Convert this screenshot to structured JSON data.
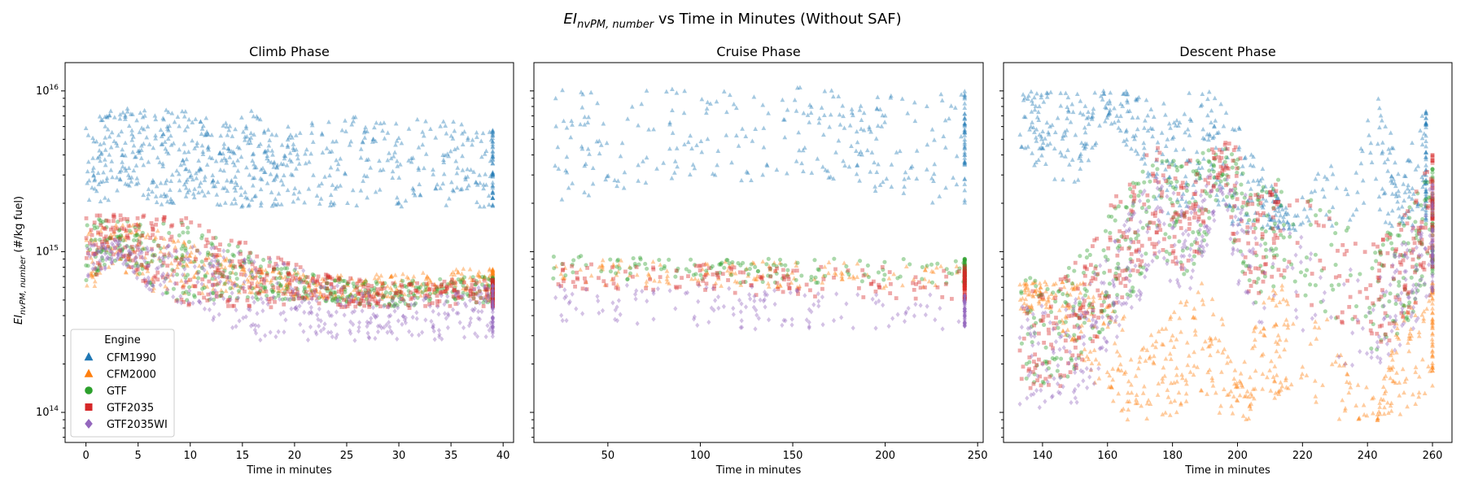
{
  "figure": {
    "title_main": "EI",
    "title_sub": "nvPM, number",
    "title_rest": " vs Time in Minutes (Without SAF)"
  },
  "ylabel": {
    "main": "EI",
    "sub": "nvPM, number",
    "rest": " (#/kg fuel)"
  },
  "legend": {
    "title": "Engine",
    "entries": [
      {
        "name": "CFM1990",
        "color": "#1f77b4",
        "marker": "triangle"
      },
      {
        "name": "CFM2000",
        "color": "#ff7f0e",
        "marker": "triangle"
      },
      {
        "name": "GTF",
        "color": "#2ca02c",
        "marker": "circle"
      },
      {
        "name": "GTF2035",
        "color": "#d62728",
        "marker": "square"
      },
      {
        "name": "GTF2035WI",
        "color": "#9467bd",
        "marker": "diamond"
      }
    ]
  },
  "chart_data": [
    {
      "type": "scatter",
      "title": "Climb Phase",
      "xlabel": "Time in minutes",
      "yscale": "log",
      "xlim": [
        -2,
        41
      ],
      "ylim": [
        65000000000000.0,
        1.5e+16
      ],
      "xticks": [
        0,
        5,
        10,
        15,
        20,
        25,
        30,
        35,
        40
      ],
      "yticks": [
        {
          "value": 100000000000000.0,
          "base": "10",
          "exp": "14"
        },
        {
          "value": 1000000000000000.0,
          "base": "10",
          "exp": "15"
        },
        {
          "value": 1e+16,
          "base": "10",
          "exp": "16"
        }
      ],
      "legend_position": "lower-left",
      "series": [
        {
          "name": "CFM1990",
          "points": [
            [
              0,
              3500000000000000.0
            ],
            [
              2,
              4000000000000000.0
            ],
            [
              4,
              4500000000000000.0
            ],
            [
              6,
              4000000000000000.0
            ],
            [
              8,
              3800000000000000.0
            ],
            [
              10,
              4200000000000000.0
            ],
            [
              12,
              3500000000000000.0
            ],
            [
              14,
              3500000000000000.0
            ],
            [
              16,
              3800000000000000.0
            ],
            [
              18,
              3300000000000000.0
            ],
            [
              20,
              3500000000000000.0
            ],
            [
              24,
              3600000000000000.0
            ],
            [
              28,
              3700000000000000.0
            ],
            [
              32,
              3600000000000000.0
            ],
            [
              36,
              3500000000000000.0
            ],
            [
              39,
              3300000000000000.0
            ]
          ],
          "spread": [
            1900000000000000.0,
            7800000000000000.0
          ]
        },
        {
          "name": "CFM2000",
          "points": [
            [
              0,
              900000000000000.0
            ],
            [
              3,
              1100000000000000.0
            ],
            [
              6,
              900000000000000.0
            ],
            [
              10,
              800000000000000.0
            ],
            [
              14,
              700000000000000.0
            ],
            [
              18,
              650000000000000.0
            ],
            [
              22,
              600000000000000.0
            ],
            [
              26,
              600000000000000.0
            ],
            [
              30,
              600000000000000.0
            ],
            [
              35,
              650000000000000.0
            ],
            [
              39,
              650000000000000.0
            ]
          ],
          "spread": [
            550000000000000.0,
            1500000000000000.0
          ]
        },
        {
          "name": "GTF",
          "points": [
            [
              0,
              1000000000000000.0
            ],
            [
              3,
              1200000000000000.0
            ],
            [
              6,
              1000000000000000.0
            ],
            [
              10,
              850000000000000.0
            ],
            [
              14,
              750000000000000.0
            ],
            [
              18,
              650000000000000.0
            ],
            [
              22,
              600000000000000.0
            ],
            [
              26,
              550000000000000.0
            ],
            [
              30,
              550000000000000.0
            ],
            [
              35,
              580000000000000.0
            ],
            [
              39,
              580000000000000.0
            ]
          ],
          "spread": [
            500000000000000.0,
            1600000000000000.0
          ]
        },
        {
          "name": "GTF2035",
          "points": [
            [
              0,
              1000000000000000.0
            ],
            [
              3,
              1300000000000000.0
            ],
            [
              6,
              1000000000000000.0
            ],
            [
              10,
              850000000000000.0
            ],
            [
              14,
              750000000000000.0
            ],
            [
              18,
              650000000000000.0
            ],
            [
              22,
              580000000000000.0
            ],
            [
              26,
              550000000000000.0
            ],
            [
              30,
              530000000000000.0
            ],
            [
              35,
              550000000000000.0
            ],
            [
              39,
              550000000000000.0
            ]
          ],
          "spread": [
            450000000000000.0,
            1700000000000000.0
          ]
        },
        {
          "name": "GTF2035WI",
          "points": [
            [
              0,
              850000000000000.0
            ],
            [
              3,
              1000000000000000.0
            ],
            [
              6,
              800000000000000.0
            ],
            [
              10,
              700000000000000.0
            ],
            [
              14,
              600000000000000.0
            ],
            [
              18,
              500000000000000.0
            ],
            [
              22,
              450000000000000.0
            ],
            [
              26,
              400000000000000.0
            ],
            [
              30,
              380000000000000.0
            ],
            [
              35,
              400000000000000.0
            ],
            [
              39,
              420000000000000.0
            ]
          ],
          "spread": [
            280000000000000.0,
            1100000000000000.0
          ]
        }
      ]
    },
    {
      "type": "scatter",
      "title": "Cruise Phase",
      "xlabel": "Time in minutes",
      "yscale": "log",
      "xlim": [
        10,
        253
      ],
      "ylim": [
        65000000000000.0,
        1.5e+16
      ],
      "xticks": [
        50,
        100,
        150,
        200,
        250
      ],
      "yticks": [
        {
          "value": 100000000000000.0,
          "base": "10",
          "exp": "14"
        },
        {
          "value": 1000000000000000.0,
          "base": "10",
          "exp": "15"
        },
        {
          "value": 1e+16,
          "base": "10",
          "exp": "16"
        }
      ],
      "series": [
        {
          "name": "CFM1990",
          "points": [
            [
              20,
              4500000000000000.0
            ],
            [
              50,
              5000000000000000.0
            ],
            [
              100,
              5500000000000000.0
            ],
            [
              150,
              5200000000000000.0
            ],
            [
              180,
              5500000000000000.0
            ],
            [
              200,
              4500000000000000.0
            ],
            [
              243,
              4500000000000000.0
            ]
          ],
          "spread": [
            2000000000000000.0,
            1.05e+16
          ]
        },
        {
          "name": "CFM2000",
          "points": [
            [
              20,
              750000000000000.0
            ],
            [
              100,
              730000000000000.0
            ],
            [
              150,
              720000000000000.0
            ],
            [
              243,
              700000000000000.0
            ]
          ],
          "spread": [
            550000000000000.0,
            850000000000000.0
          ]
        },
        {
          "name": "GTF",
          "points": [
            [
              20,
              800000000000000.0
            ],
            [
              100,
              780000000000000.0
            ],
            [
              150,
              760000000000000.0
            ],
            [
              243,
              750000000000000.0
            ]
          ],
          "spread": [
            650000000000000.0,
            880000000000000.0
          ]
        },
        {
          "name": "GTF2035",
          "points": [
            [
              20,
              700000000000000.0
            ],
            [
              100,
              680000000000000.0
            ],
            [
              150,
              660000000000000.0
            ],
            [
              243,
              640000000000000.0
            ]
          ],
          "spread": [
            500000000000000.0,
            830000000000000.0
          ]
        },
        {
          "name": "GTF2035WI",
          "points": [
            [
              20,
              480000000000000.0
            ],
            [
              100,
              460000000000000.0
            ],
            [
              150,
              440000000000000.0
            ],
            [
              243,
              420000000000000.0
            ]
          ],
          "spread": [
            330000000000000.0,
            620000000000000.0
          ]
        }
      ]
    },
    {
      "type": "scatter",
      "title": "Descent Phase",
      "xlabel": "Time in minutes",
      "yscale": "log",
      "xlim": [
        128,
        266
      ],
      "ylim": [
        65000000000000.0,
        1.5e+16
      ],
      "xticks": [
        140,
        160,
        180,
        200,
        220,
        240,
        260
      ],
      "yticks": [
        {
          "value": 100000000000000.0,
          "base": "10",
          "exp": "14"
        },
        {
          "value": 1000000000000000.0,
          "base": "10",
          "exp": "15"
        },
        {
          "value": 1e+16,
          "base": "10",
          "exp": "16"
        }
      ],
      "series": [
        {
          "name": "CFM1990",
          "points": [
            [
              133,
              6500000000000000.0
            ],
            [
              140,
              5500000000000000.0
            ],
            [
              150,
              5000000000000000.0
            ],
            [
              160,
              8000000000000000.0
            ],
            [
              170,
              6000000000000000.0
            ],
            [
              180,
              3500000000000000.0
            ],
            [
              190,
              5500000000000000.0
            ],
            [
              200,
              3000000000000000.0
            ],
            [
              210,
              2000000000000000.0
            ],
            [
              216,
              1500000000000000.0
            ],
            [
              243,
              4500000000000000.0
            ],
            [
              250,
              2000000000000000.0
            ],
            [
              258,
              3500000000000000.0
            ]
          ],
          "spread": [
            1400000000000000.0,
            1e+16
          ]
        },
        {
          "name": "CFM2000",
          "points": [
            [
              133,
              500000000000000.0
            ],
            [
              140,
              550000000000000.0
            ],
            [
              150,
              400000000000000.0
            ],
            [
              160,
              250000000000000.0
            ],
            [
              170,
              150000000000000.0
            ],
            [
              180,
              200000000000000.0
            ],
            [
              190,
              300000000000000.0
            ],
            [
              200,
              120000000000000.0
            ],
            [
              210,
              250000000000000.0
            ],
            [
              216,
              300000000000000.0
            ],
            [
              243,
              100000000000000.0
            ],
            [
              250,
              200000000000000.0
            ],
            [
              260,
              300000000000000.0
            ]
          ],
          "spread": [
            90000000000000.0,
            650000000000000.0
          ]
        },
        {
          "name": "GTF",
          "points": [
            [
              133,
              350000000000000.0
            ],
            [
              145,
              300000000000000.0
            ],
            [
              155,
              600000000000000.0
            ],
            [
              165,
              1000000000000000.0
            ],
            [
              175,
              2000000000000000.0
            ],
            [
              185,
              1500000000000000.0
            ],
            [
              195,
              3500000000000000.0
            ],
            [
              205,
              1000000000000000.0
            ],
            [
              215,
              1500000000000000.0
            ],
            [
              243,
              500000000000000.0
            ],
            [
              252,
              800000000000000.0
            ],
            [
              260,
              1500000000000000.0
            ]
          ],
          "spread": [
            150000000000000.0,
            4500000000000000.0
          ]
        },
        {
          "name": "GTF2035",
          "points": [
            [
              133,
              300000000000000.0
            ],
            [
              145,
              300000000000000.0
            ],
            [
              155,
              550000000000000.0
            ],
            [
              165,
              1200000000000000.0
            ],
            [
              175,
              2200000000000000.0
            ],
            [
              185,
              1600000000000000.0
            ],
            [
              195,
              4000000000000000.0
            ],
            [
              205,
              1000000000000000.0
            ],
            [
              213,
              1300000000000000.0
            ],
            [
              243,
              500000000000000.0
            ],
            [
              252,
              800000000000000.0
            ],
            [
              260,
              1800000000000000.0
            ]
          ],
          "spread": [
            140000000000000.0,
            4800000000000000.0
          ]
        },
        {
          "name": "GTF2035WI",
          "points": [
            [
              133,
              250000000000000.0
            ],
            [
              145,
              200000000000000.0
            ],
            [
              155,
              300000000000000.0
            ],
            [
              165,
              800000000000000.0
            ],
            [
              175,
              1500000000000000.0
            ],
            [
              185,
              1200000000000000.0
            ],
            [
              195,
              2500000000000000.0
            ],
            [
              205,
              800000000000000.0
            ],
            [
              243,
              350000000000000.0
            ],
            [
              252,
              600000000000000.0
            ],
            [
              260,
              1200000000000000.0
            ]
          ],
          "spread": [
            80000000000000.0,
            3000000000000000.0
          ]
        }
      ]
    }
  ]
}
